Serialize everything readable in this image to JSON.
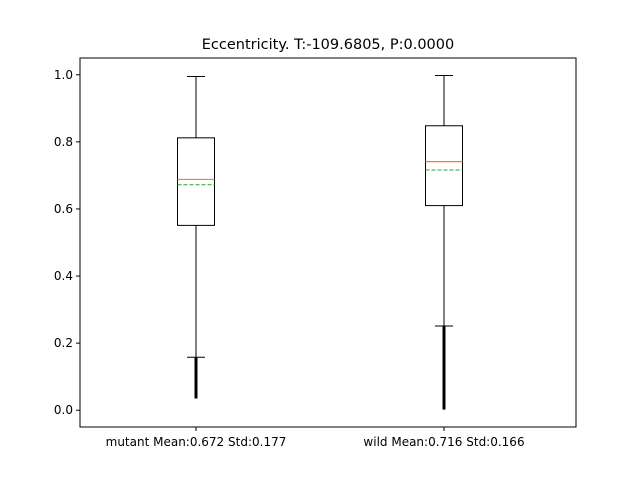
{
  "chart_data": {
    "type": "box",
    "title": "Eccentricity. T:-109.6805, P:0.0000",
    "xlabel": "",
    "ylabel": "",
    "ylim": [
      -0.05,
      1.05
    ],
    "yticks": [
      0.0,
      0.2,
      0.4,
      0.6,
      0.8,
      1.0
    ],
    "ytick_labels": [
      "0.0",
      "0.2",
      "0.4",
      "0.6",
      "0.8",
      "1.0"
    ],
    "categories": [
      "mutant Mean:0.672 Std:0.177",
      "wild Mean:0.716 Std:0.166"
    ],
    "boxes": [
      {
        "whisker_low": 0.158,
        "q1": 0.551,
        "median": 0.688,
        "mean": 0.672,
        "q3": 0.812,
        "whisker_high": 0.995,
        "outlier_range": [
          0.035,
          0.158
        ]
      },
      {
        "whisker_low": 0.251,
        "q1": 0.61,
        "median": 0.741,
        "mean": 0.716,
        "q3": 0.848,
        "whisker_high": 0.998,
        "outlier_range": [
          0.002,
          0.251
        ]
      }
    ],
    "colors": {
      "median": "#ff7f0e",
      "mean": "#2ca02c",
      "box": "#000000",
      "outlier": "#000000"
    }
  }
}
